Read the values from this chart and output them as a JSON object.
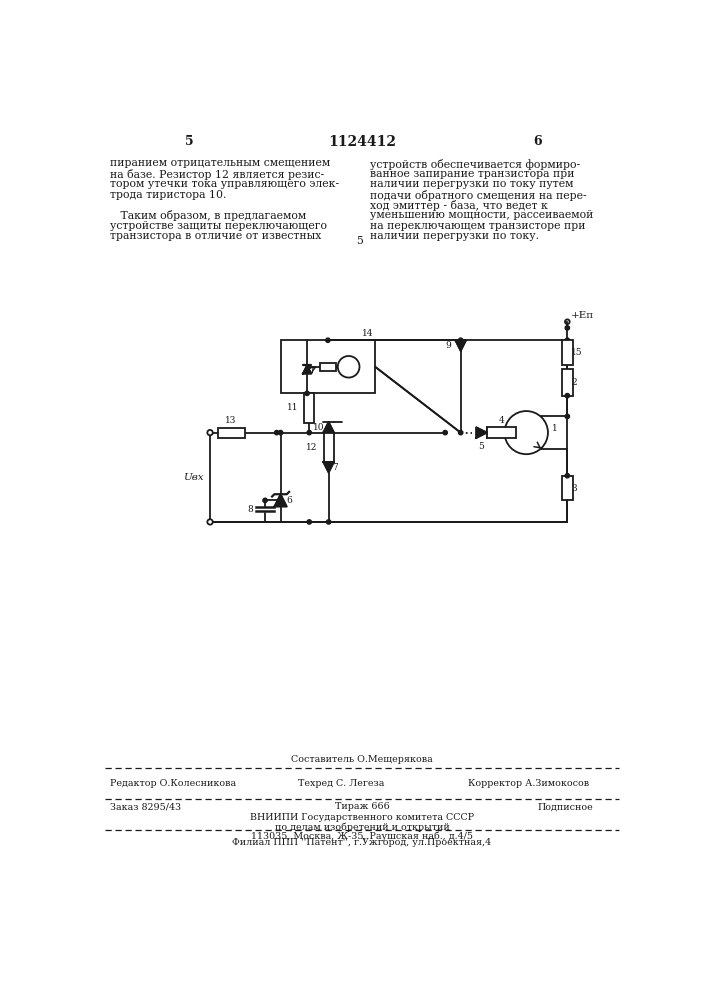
{
  "page_width": 7.07,
  "page_height": 10.0,
  "bg_color": "#ffffff",
  "header_number": "1124412",
  "header_left_page": "5",
  "header_right_page": "6",
  "text_left_col": [
    "пиранием отрицательным смещением",
    "на базе. Резистор 12 является резис-",
    "тором утечки тока управляющего элек-",
    "трода тиристора 10.",
    "",
    "   Таким образом, в предлагаемом",
    "устройстве защиты переключающего",
    "транзистора в отличие от известных"
  ],
  "text_right_col": [
    "устройств обеспечивается формиро-",
    "ванное запирание транзистора при",
    "наличии перегрузки по току путем",
    "подачи обратного смещения на пере-",
    "ход эмиттер - база, что ведет к",
    "уменьшению мощности, рассеиваемой",
    "на переключающем транзисторе при",
    "наличии перегрузки по току."
  ],
  "line_number_5": "5",
  "footer_composer": "Составитель О.Мещерякова",
  "footer_editor": "Редактор О.Колесникова",
  "footer_techred": "Техред С. Легеза",
  "footer_corrector": "Корректор А.Зимокосов",
  "footer_order": "Заказ 8295/43",
  "footer_tirazh": "Тираж 666",
  "footer_podpisnoe": "Подписное",
  "footer_vniippi1": "ВНИИПИ Государственного комитета СССР",
  "footer_vniippi2": "по делам изобретений и открытий",
  "footer_vniippi3": "113035, Москва, Ж-35, Раушская наб., д.4/5",
  "footer_filial": "Филиал ППП ''Патент'', г.Ужгород, ул.Проектная,4"
}
